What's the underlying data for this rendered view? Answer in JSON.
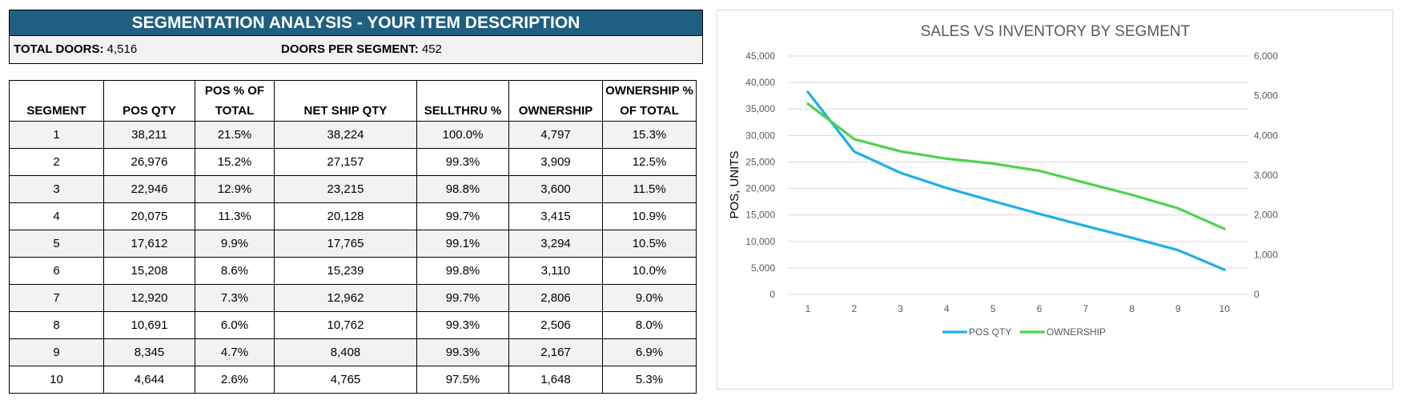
{
  "header": {
    "title": "SEGMENTATION ANALYSIS - YOUR ITEM DESCRIPTION",
    "total_doors_label": "TOTAL DOORS:",
    "total_doors_value": "4,516",
    "doors_per_segment_label": "DOORS PER SEGMENT:",
    "doors_per_segment_value": "452"
  },
  "table": {
    "columns": [
      [
        "SEGMENT"
      ],
      [
        "POS QTY"
      ],
      [
        "POS % OF",
        "TOTAL"
      ],
      [
        "NET SHIP QTY"
      ],
      [
        "SELLTHRU %"
      ],
      [
        "OWNERSHIP"
      ],
      [
        "OWNERSHIP %",
        "OF TOTAL"
      ]
    ],
    "rows": [
      [
        "1",
        "38,211",
        "21.5%",
        "38,224",
        "100.0%",
        "4,797",
        "15.3%"
      ],
      [
        "2",
        "26,976",
        "15.2%",
        "27,157",
        "99.3%",
        "3,909",
        "12.5%"
      ],
      [
        "3",
        "22,946",
        "12.9%",
        "23,215",
        "98.8%",
        "3,600",
        "11.5%"
      ],
      [
        "4",
        "20,075",
        "11.3%",
        "20,128",
        "99.7%",
        "3,415",
        "10.9%"
      ],
      [
        "5",
        "17,612",
        "9.9%",
        "17,765",
        "99.1%",
        "3,294",
        "10.5%"
      ],
      [
        "6",
        "15,208",
        "8.6%",
        "15,239",
        "99.8%",
        "3,110",
        "10.0%"
      ],
      [
        "7",
        "12,920",
        "7.3%",
        "12,962",
        "99.7%",
        "2,806",
        "9.0%"
      ],
      [
        "8",
        "10,691",
        "6.0%",
        "10,762",
        "99.3%",
        "2,506",
        "8.0%"
      ],
      [
        "9",
        "8,345",
        "4.7%",
        "8,408",
        "99.3%",
        "2,167",
        "6.9%"
      ],
      [
        "10",
        "4,644",
        "2.6%",
        "4,765",
        "97.5%",
        "1,648",
        "5.3%"
      ]
    ]
  },
  "chart_data": {
    "type": "line",
    "title": "SALES VS INVENTORY BY SEGMENT",
    "ylabel": "POS, UNITS",
    "xlabel": "",
    "x": [
      1,
      2,
      3,
      4,
      5,
      6,
      7,
      8,
      9,
      10
    ],
    "ylim": [
      0,
      45000
    ],
    "y2lim": [
      0,
      6000
    ],
    "y_ticks": [
      "0",
      "5,000",
      "10,000",
      "15,000",
      "20,000",
      "25,000",
      "30,000",
      "35,000",
      "40,000",
      "45,000"
    ],
    "y2_ticks": [
      "0",
      "1,000",
      "2,000",
      "3,000",
      "4,000",
      "5,000",
      "6,000"
    ],
    "grid": true,
    "legend_position": "bottom",
    "series": [
      {
        "name": "POS QTY",
        "axis": "left",
        "color": "#1cb0ea",
        "values": [
          38211,
          26976,
          22946,
          20075,
          17612,
          15208,
          12920,
          10691,
          8345,
          4644
        ]
      },
      {
        "name": "OWNERSHIP",
        "axis": "right",
        "color": "#4cd34c",
        "values": [
          4797,
          3909,
          3600,
          3415,
          3294,
          3110,
          2806,
          2506,
          2167,
          1648
        ]
      }
    ]
  },
  "colors": {
    "banner": "#1f5f82",
    "row_shade": "#f2f2f2",
    "gridline": "#d9d9d9",
    "axis_text": "#595959"
  }
}
